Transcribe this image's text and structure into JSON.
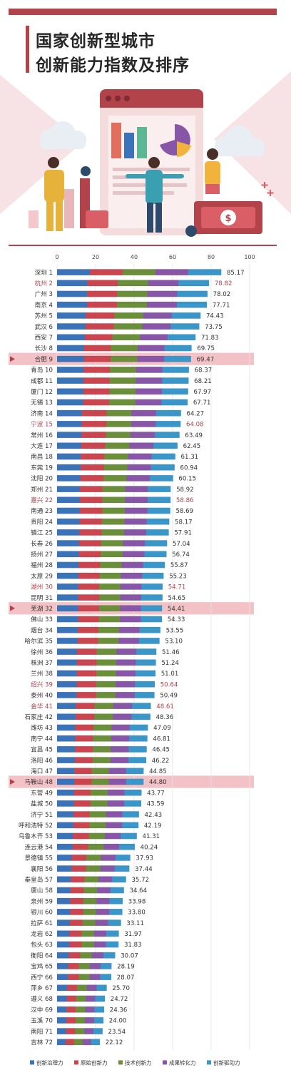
{
  "header": {
    "title_line1": "国家创新型城市",
    "title_line2": "创新能力指数及排序"
  },
  "colors": {
    "accent": "#b2434a",
    "highlight_band": "#f2c2c6",
    "label_dark": "#333333",
    "label_red": "#b2434a"
  },
  "chart_data": {
    "type": "bar",
    "orientation": "horizontal",
    "stacked": true,
    "xlim": [
      0,
      100
    ],
    "xticks": [
      0,
      20,
      40,
      60,
      80,
      100
    ],
    "grid": true,
    "legend_position": "bottom",
    "legend": [
      {
        "name": "创新治理力",
        "color": "#3a73b8"
      },
      {
        "name": "原始创新力",
        "color": "#c9454f"
      },
      {
        "name": "技术创新力",
        "color": "#6a8e3a"
      },
      {
        "name": "成果转化力",
        "color": "#8756a6"
      },
      {
        "name": "创新驱动力",
        "color": "#3a96c8"
      }
    ],
    "categories": [
      "深圳 1",
      "杭州 2",
      "广州 3",
      "南京 4",
      "苏州 5",
      "武汉 6",
      "西安 7",
      "长沙 8",
      "合肥 9",
      "青岛 10",
      "成都 11",
      "厦门 12",
      "无锡 13",
      "济南 14",
      "宁波 15",
      "常州 16",
      "大连 17",
      "南昌 18",
      "东莞 19",
      "沈阳 20",
      "郑州 21",
      "嘉兴 22",
      "南通 23",
      "贵阳 24",
      "镇江 25",
      "长春 26",
      "扬州 27",
      "福州 28",
      "太原 29",
      "湖州 30",
      "昆明 31",
      "芜湖 32",
      "佛山 33",
      "烟台 34",
      "哈尔滨 35",
      "徐州 36",
      "株洲 37",
      "兰州 38",
      "绍兴 39",
      "泰州 40",
      "金华 41",
      "石家庄 42",
      "潍坊 43",
      "南宁 44",
      "宜昌 45",
      "洛阳 46",
      "海口 47",
      "马鞍山 48",
      "东营 49",
      "盐城 50",
      "济宁 51",
      "呼和浩特 52",
      "乌鲁木齐 53",
      "连云港 54",
      "景德镇 55",
      "襄阳 56",
      "秦皇岛 57",
      "唐山 58",
      "泉州 59",
      "银川 60",
      "拉萨 61",
      "龙岩 62",
      "包头 63",
      "衡阳 64",
      "宝鸡 65",
      "西宁 66",
      "萍乡 67",
      "遵义 68",
      "汉中 69",
      "玉溪 70",
      "南阳 71",
      "吉林 72"
    ],
    "values": [
      85.17,
      78.82,
      78.02,
      77.71,
      74.43,
      73.75,
      71.83,
      69.75,
      69.47,
      68.37,
      68.21,
      67.97,
      67.71,
      64.27,
      64.08,
      63.49,
      62.45,
      61.31,
      60.94,
      60.15,
      58.92,
      58.86,
      58.69,
      58.17,
      57.91,
      57.04,
      56.74,
      55.87,
      55.23,
      54.71,
      54.65,
      54.41,
      54.33,
      53.55,
      53.1,
      51.46,
      51.24,
      51.01,
      50.64,
      50.49,
      48.61,
      48.36,
      47.09,
      46.81,
      46.45,
      46.22,
      44.85,
      44.8,
      43.77,
      43.59,
      42.43,
      42.19,
      41.31,
      40.24,
      37.93,
      37.44,
      35.72,
      34.64,
      33.98,
      33.8,
      33.11,
      31.97,
      31.83,
      30.07,
      28.19,
      28.07,
      25.7,
      24.72,
      24.36,
      24.0,
      23.54,
      22.12
    ],
    "value_labels": [
      "85.17",
      "78.82",
      "78.02",
      "77.71",
      "74.43",
      "73.75",
      "71.83",
      "69.75",
      "69.47",
      "68.37",
      "68.21",
      "67.97",
      "67.71",
      "64.27",
      "64.08",
      "63.49",
      "62.45",
      "61.31",
      "60.94",
      "60.15",
      "58.92",
      "58.86",
      "58.69",
      "58.17",
      "57.91",
      "57.04",
      "56.74",
      "55.87",
      "55.23",
      "54.71",
      "54.65",
      "54.41",
      "54.33",
      "53.55",
      "53.10",
      "51.46",
      "51.24",
      "51.01",
      "50.64",
      "50.49",
      "48.61",
      "48.36",
      "47.09",
      "46.81",
      "46.45",
      "46.22",
      "44.85",
      "44.80",
      "43.77",
      "43.59",
      "42.43",
      "42.19",
      "41.31",
      "40.24",
      "37.93",
      "37.44",
      "35.72",
      "34.64",
      "33.98",
      "33.80",
      "33.11",
      "31.97",
      "31.83",
      "30.07",
      "28.19",
      "28.07",
      "25.70",
      "24.72",
      "24.36",
      "24.00",
      "23.54",
      "22.12"
    ],
    "highlighted": [
      "合肥 9",
      "芜湖 32",
      "马鞍山 48"
    ],
    "red_labels": [
      "杭州 2",
      "宁波 15",
      "嘉兴 22",
      "湖州 30",
      "绍兴 39",
      "金华 41"
    ]
  }
}
